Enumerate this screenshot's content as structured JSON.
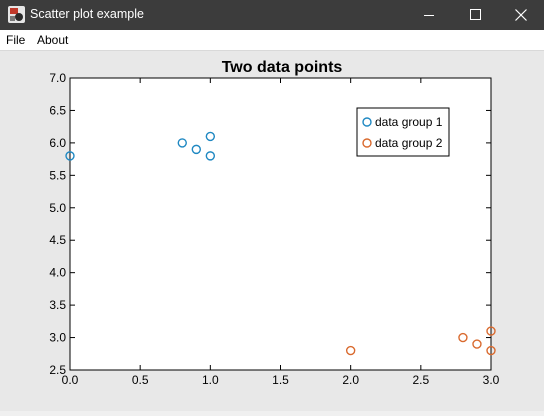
{
  "window": {
    "title": "Scatter plot example",
    "icon": "java-app-icon",
    "controls": [
      "minimize-icon",
      "maximize-icon",
      "close-icon"
    ]
  },
  "menubar": {
    "items": [
      {
        "label": "File"
      },
      {
        "label": "About"
      }
    ]
  },
  "colors": {
    "titlebar_bg": "#3c3c3c",
    "plot_bg": "#ffffff",
    "content_bg": "#e8e8e8",
    "group1": "#1f88c2",
    "group2": "#d9692d"
  },
  "chart_data": {
    "type": "scatter",
    "title": "Two data points",
    "xlabel": "",
    "ylabel": "",
    "xlim": [
      0.0,
      3.0
    ],
    "ylim": [
      2.5,
      7.0
    ],
    "xticks": [
      "0.0",
      "0.5",
      "1.0",
      "1.5",
      "2.0",
      "2.5",
      "3.0"
    ],
    "yticks": [
      "2.5",
      "3.0",
      "3.5",
      "4.0",
      "4.5",
      "5.0",
      "5.5",
      "6.0",
      "6.5",
      "7.0"
    ],
    "grid": false,
    "legend_position": "top-right",
    "series": [
      {
        "name": "data group 1",
        "color": "#1f88c2",
        "marker": "open-circle",
        "points": [
          [
            0.0,
            5.8
          ],
          [
            0.8,
            6.0
          ],
          [
            0.9,
            5.9
          ],
          [
            1.0,
            6.1
          ],
          [
            1.0,
            5.8
          ]
        ]
      },
      {
        "name": "data group 2",
        "color": "#d9692d",
        "marker": "open-circle",
        "points": [
          [
            2.0,
            2.8
          ],
          [
            2.8,
            3.0
          ],
          [
            2.9,
            2.9
          ],
          [
            3.0,
            3.1
          ],
          [
            3.0,
            2.8
          ]
        ]
      }
    ]
  }
}
